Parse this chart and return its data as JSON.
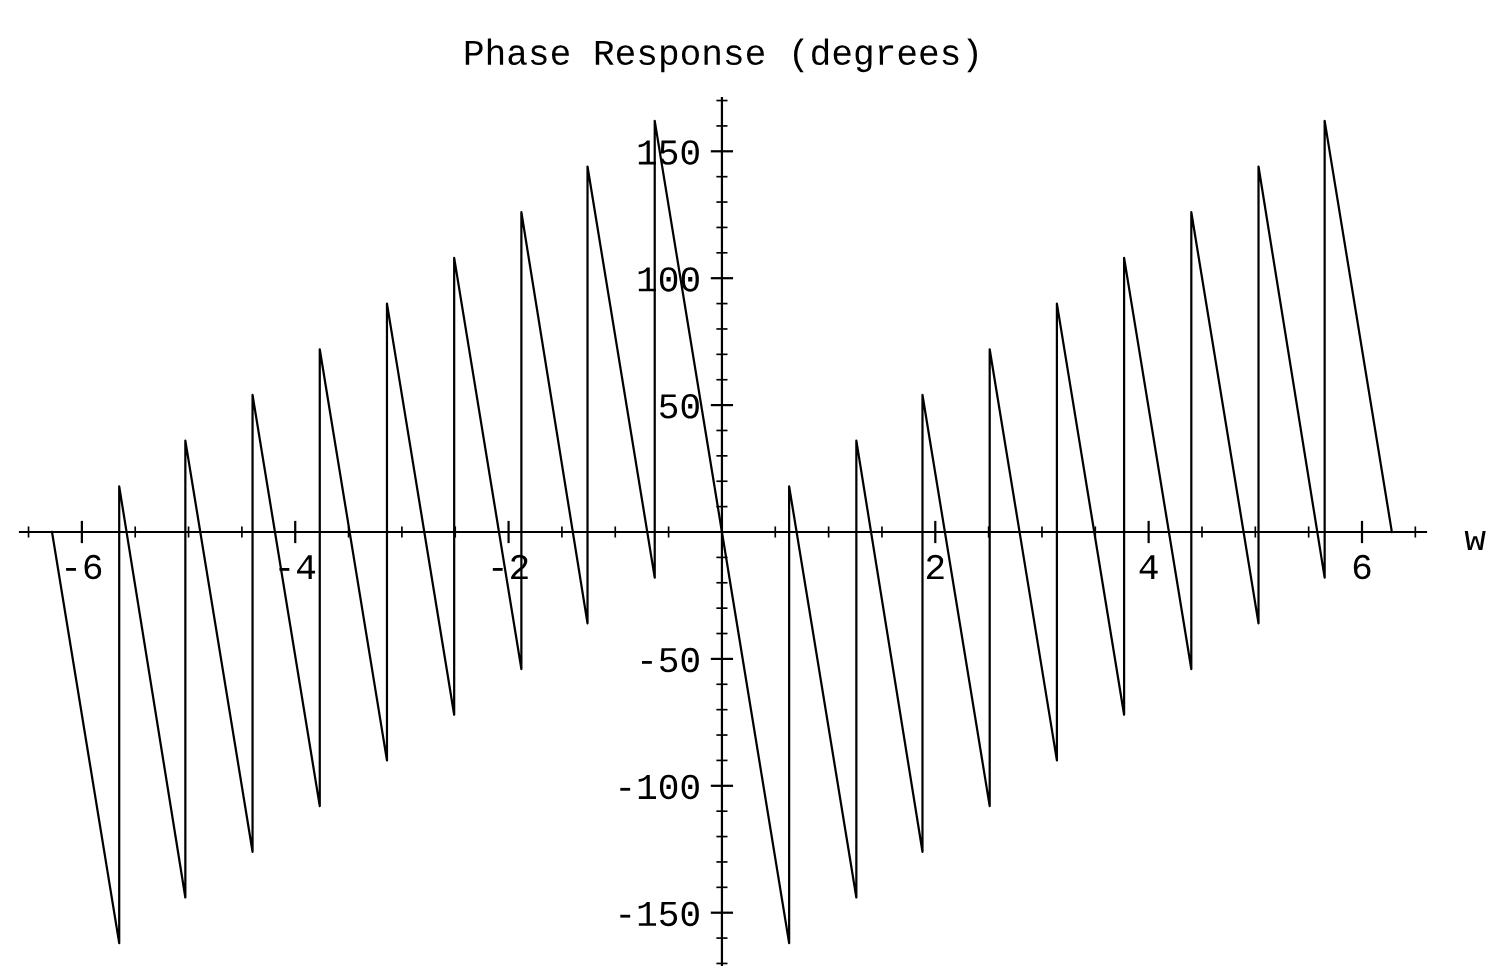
{
  "chart_data": {
    "type": "line",
    "title": "Phase Response (degrees)",
    "xlabel": "w",
    "series": [
      {
        "color": "#000000",
        "x": [
          -6.28,
          -5.65,
          -5.65,
          -5.03,
          -5.03,
          -4.4,
          -4.4,
          -3.77,
          -3.77,
          -3.14,
          -3.14,
          -2.51,
          -2.51,
          -1.88,
          -1.88,
          -1.26,
          -1.26,
          -0.63,
          -0.63,
          0,
          0.63,
          0.63,
          1.26,
          1.26,
          1.88,
          1.88,
          2.51,
          2.51,
          3.14,
          3.14,
          3.77,
          3.77,
          4.4,
          4.4,
          5.03,
          5.03,
          5.65,
          5.65,
          6.28
        ],
        "values": [
          0,
          -162,
          18,
          -144,
          36,
          -126,
          54,
          -108,
          72,
          -90,
          90,
          -72,
          108,
          -54,
          126,
          -36,
          144,
          -18,
          162,
          0,
          -162,
          18,
          -144,
          36,
          -126,
          54,
          -108,
          72,
          -90,
          90,
          -72,
          108,
          -54,
          126,
          -36,
          144,
          -18,
          162,
          0
        ]
      }
    ],
    "xlim": [
      -6.58,
      6.6
    ],
    "ylim": [
      -171,
      171
    ],
    "xticks": [
      -6,
      -4,
      -2,
      2,
      4,
      6
    ],
    "yticks": [
      -150,
      -100,
      -50,
      50,
      100,
      150
    ],
    "grid": false,
    "legend": false,
    "marker": "none",
    "line_style": "solid"
  }
}
